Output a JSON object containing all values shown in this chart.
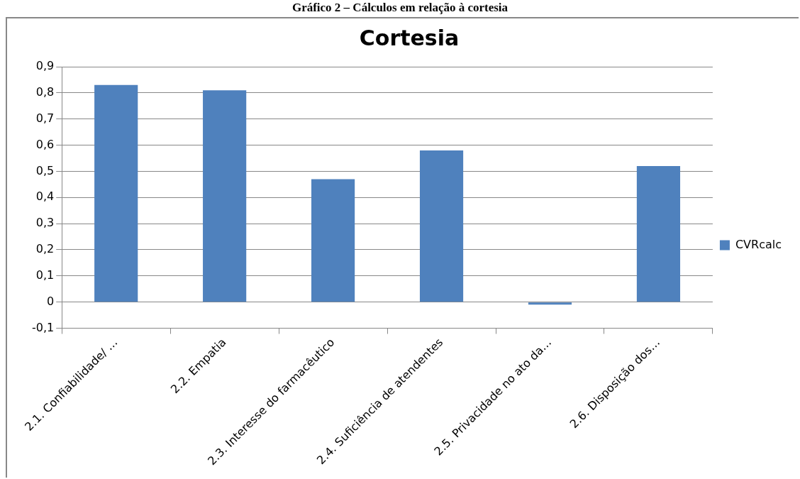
{
  "chart_data": {
    "type": "bar",
    "title": "Cortesia",
    "annotations": [
      "Gráfico 2 – Cálculos em relação à cortesia"
    ],
    "categories": [
      "2.1. Confiabilidade/ …",
      "2.2. Empatia",
      "2.3. Interesse do farmacêutico",
      "2.4. Suficiência de atendentes",
      "2.5. Privacidade no ato da…",
      "2.6. Disposição dos…"
    ],
    "series": [
      {
        "name": "CVRcalc",
        "color": "#4f81bd",
        "values": [
          0.83,
          0.81,
          0.47,
          0.58,
          -0.01,
          0.52
        ]
      }
    ],
    "ylim": [
      -0.1,
      0.9
    ],
    "yticks": [
      {
        "value": -0.1,
        "label": "-0,1"
      },
      {
        "value": 0,
        "label": "0"
      },
      {
        "value": 0.1,
        "label": "0,1"
      },
      {
        "value": 0.2,
        "label": "0,2"
      },
      {
        "value": 0.3,
        "label": "0,3"
      },
      {
        "value": 0.4,
        "label": "0,4"
      },
      {
        "value": 0.5,
        "label": "0,5"
      },
      {
        "value": 0.6,
        "label": "0,6"
      },
      {
        "value": 0.7,
        "label": "0,7"
      },
      {
        "value": 0.8,
        "label": "0,8"
      },
      {
        "value": 0.9,
        "label": "0,9"
      }
    ],
    "grid": "y",
    "legend": "right"
  }
}
